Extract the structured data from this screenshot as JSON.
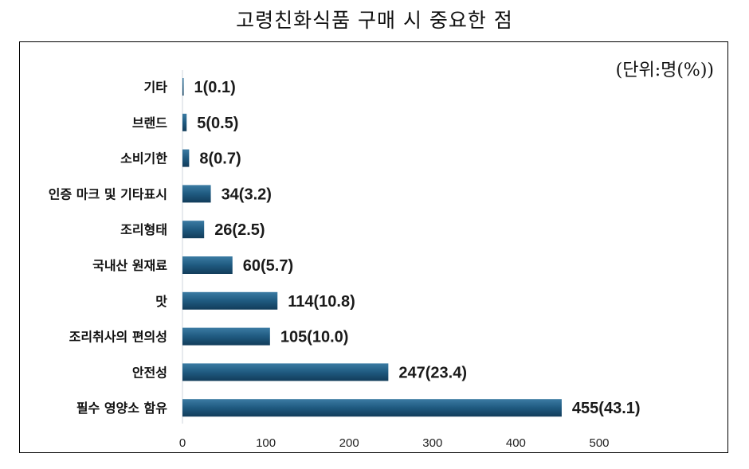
{
  "chart_data": {
    "type": "bar",
    "orientation": "horizontal",
    "title": "고령친화식품 구매 시 중요한 점",
    "unit": "(단위:명(%))",
    "categories": [
      "기타",
      "브랜드",
      "소비기한",
      "인증 마크 및 기타표시",
      "조리형태",
      "국내산 원재료",
      "맛",
      "조리취사의 편의성",
      "안전성",
      "필수 영양소 함유"
    ],
    "values": [
      1,
      5,
      8,
      34,
      26,
      60,
      114,
      105,
      247,
      455
    ],
    "data_labels": [
      "1(0.1)",
      "5(0.5)",
      "8(0.7)",
      "34(3.2)",
      "26(2.5)",
      "60(5.7)",
      "114(10.8)",
      "105(10.0)",
      "247(23.4)",
      "455(43.1)"
    ],
    "xticks": [
      "0",
      "100",
      "200",
      "300",
      "400",
      "500"
    ],
    "xlim": [
      0,
      500
    ],
    "grid": false,
    "bar_color": "#1f5a80"
  }
}
